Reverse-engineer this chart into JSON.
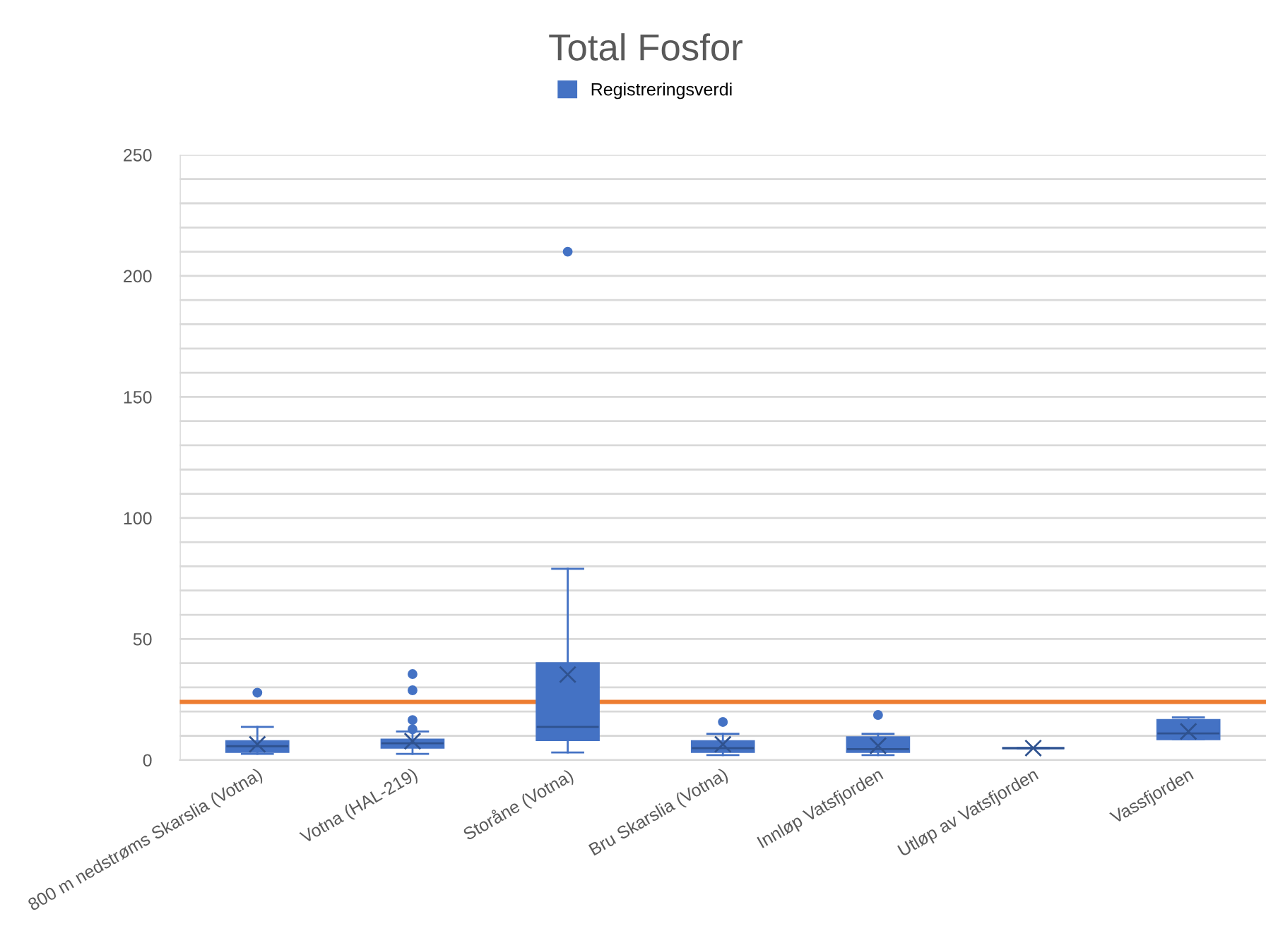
{
  "chart_data": {
    "type": "box",
    "title": "Total Fosfor",
    "categories": [
      "800 m nedstrøms Skarslia (Votna)",
      "Votna (HAL-219)",
      "Storåne (Votna)",
      "Bru Skarslia (Votna)",
      "Innløp Vatsfjorden",
      "Utløp av Vatsfjorden",
      "Vassfjorden"
    ],
    "series": [
      {
        "name": "Registreringsverdi",
        "color": "#4472c4",
        "boxes": [
          {
            "low": 2.5,
            "q1": 3.3,
            "median": 5.7,
            "q3": 7.8,
            "high": 13.7,
            "mean": 6.5,
            "outliers": [
              27.8
            ]
          },
          {
            "low": 2.5,
            "q1": 5.1,
            "median": 6.9,
            "q3": 8.4,
            "high": 11.8,
            "mean": 7.8,
            "outliers": [
              12.7,
              16.5,
              28.8,
              35.5
            ]
          },
          {
            "low": 3.1,
            "q1": 8.2,
            "median": 13.7,
            "q3": 40,
            "high": 79,
            "mean": 35.3,
            "outliers": [
              210
            ]
          },
          {
            "low": 2,
            "q1": 3.3,
            "median": 4.9,
            "q3": 7.8,
            "high": 10.8,
            "mean": 6.5,
            "outliers": [
              15.7
            ]
          },
          {
            "low": 2,
            "q1": 3.3,
            "median": 4.5,
            "q3": 9.4,
            "high": 10.8,
            "mean": 5.9,
            "outliers": [
              18.6
            ]
          },
          {
            "low": 4.9,
            "q1": 4.9,
            "median": 4.9,
            "q3": 4.9,
            "high": 4.9,
            "mean": 4.9
          },
          {
            "low": 8.6,
            "q1": 8.6,
            "median": 11,
            "q3": 16.5,
            "high": 17.6,
            "mean": 11.8
          }
        ]
      }
    ],
    "ylim": [
      0,
      250
    ],
    "yticks": [
      0,
      {
        "value": 10,
        "label": null
      },
      {
        "value": 20,
        "label": null
      },
      {
        "value": 30,
        "label": null
      },
      {
        "value": 40,
        "label": null
      },
      50,
      {
        "value": 60,
        "label": null
      },
      {
        "value": 70,
        "label": null
      },
      {
        "value": 80,
        "label": null
      },
      {
        "value": 90,
        "label": null
      },
      100,
      {
        "value": 110,
        "label": null
      },
      {
        "value": 120,
        "label": null
      },
      {
        "value": 130,
        "label": null
      },
      {
        "value": 140,
        "label": null
      },
      150,
      {
        "value": 160,
        "label": null
      },
      {
        "value": 170,
        "label": null
      },
      {
        "value": 180,
        "label": null
      },
      {
        "value": 190,
        "label": null
      },
      200,
      {
        "value": 210,
        "label": null
      },
      {
        "value": 220,
        "label": null
      },
      {
        "value": 230,
        "label": null
      },
      {
        "value": 240,
        "label": null
      },
      250
    ],
    "ref_lines": [
      {
        "axis": "y",
        "value": 24,
        "color": "#ed7d31"
      }
    ],
    "grid": "y",
    "legend": "top"
  }
}
